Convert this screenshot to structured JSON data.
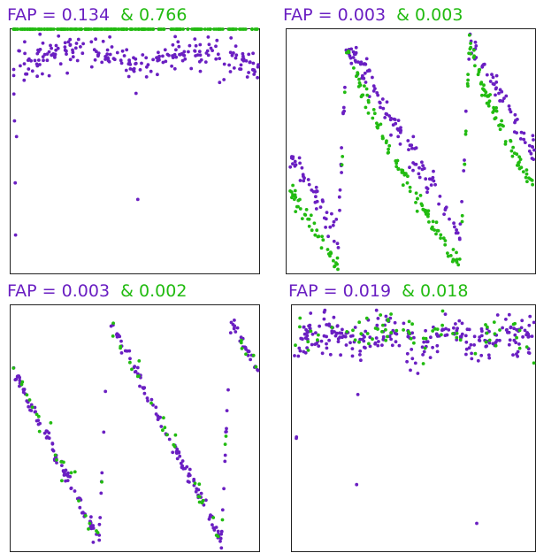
{
  "colors": {
    "purple": "#6a1fc2",
    "green": "#22bb11"
  },
  "chart_data": [
    {
      "type": "scatter",
      "title_prefix": "FAP = ",
      "fap_purple": "0.134",
      "fap_sep": "&",
      "fap_green": "0.766",
      "grid": false,
      "legend": "none",
      "ylim": [
        0,
        1
      ],
      "series": [
        {
          "color": "purple",
          "shape": "arc",
          "params": {
            "base": 0.86,
            "amp": 0.06,
            "noise": 0.035,
            "count": 230,
            "dip_depth": 0.78,
            "dip_width": 0.02,
            "period": 0.5,
            "phase0": 0.01
          }
        },
        {
          "color": "green",
          "shape": "scatter",
          "params": {
            "base": 0.66,
            "amp": 0.0,
            "noise": 0.1,
            "count": 220,
            "dip_depth": 0.84,
            "dip_width": 0.02,
            "period": 0.5,
            "phase0": 0.01
          }
        }
      ]
    },
    {
      "type": "scatter",
      "title_prefix": "FAP = ",
      "fap_purple": "0.003",
      "fap_sep": "&",
      "fap_green": "0.003",
      "grid": false,
      "legend": "none",
      "ylim": [
        0,
        1
      ],
      "series": [
        {
          "color": "purple",
          "shape": "sawtooth",
          "params": {
            "peak": 0.96,
            "trough": 0.16,
            "rise": 0.07,
            "noise": 0.03,
            "count": 230,
            "period": 0.5,
            "start": 0.2
          }
        },
        {
          "color": "green",
          "shape": "sawtooth",
          "params": {
            "peak": 0.96,
            "trough": 0.03,
            "rise": 0.07,
            "noise": 0.02,
            "count": 230,
            "period": 0.5,
            "start": 0.2,
            "drop_fast": true
          }
        }
      ]
    },
    {
      "type": "scatter",
      "title_prefix": "FAP = ",
      "fap_purple": "0.003",
      "fap_sep": "&",
      "fap_green": "0.002",
      "grid": false,
      "legend": "none",
      "ylim": [
        0,
        1
      ],
      "series": [
        {
          "color": "purple",
          "shape": "sawtooth",
          "params": {
            "peak": 0.96,
            "trough": 0.04,
            "rise": 0.08,
            "noise": 0.015,
            "count": 230,
            "period": 0.5,
            "start": 0.35
          }
        },
        {
          "color": "green",
          "shape": "sawtooth",
          "params": {
            "peak": 0.96,
            "trough": 0.04,
            "rise": 0.08,
            "noise": 0.03,
            "count": 60,
            "period": 0.5,
            "start": 0.35
          }
        }
      ]
    },
    {
      "type": "scatter",
      "title_prefix": "FAP = ",
      "fap_purple": "0.019",
      "fap_sep": "&",
      "fap_green": "0.018",
      "grid": false,
      "legend": "none",
      "ylim": [
        0,
        1
      ],
      "series": [
        {
          "color": "purple",
          "shape": "arc",
          "params": {
            "base": 0.84,
            "amp": 0.06,
            "noise": 0.04,
            "count": 260,
            "dip_depth": 0.72,
            "dip_width": 0.03,
            "period": 0.25,
            "phase0": 0.01
          }
        },
        {
          "color": "green",
          "shape": "arc",
          "params": {
            "base": 0.86,
            "amp": 0.05,
            "noise": 0.035,
            "count": 70,
            "dip_depth": 0.9,
            "dip_width": 0.03,
            "period": 0.25,
            "phase0": 0.01
          }
        }
      ]
    }
  ]
}
